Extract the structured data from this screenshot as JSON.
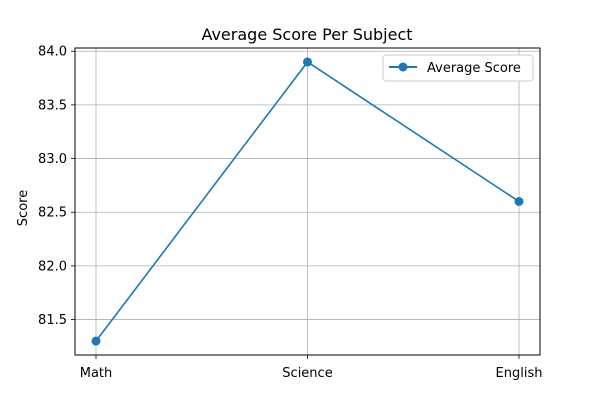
{
  "chart_data": {
    "type": "line",
    "title": "Average Score Per Subject",
    "xlabel": "",
    "ylabel": "Score",
    "categories": [
      "Math",
      "Science",
      "English"
    ],
    "series": [
      {
        "name": "Average Score",
        "values": [
          81.3,
          83.9,
          82.6
        ],
        "color": "#1f77b4",
        "marker": "circle"
      }
    ],
    "ylim": [
      81.17,
      84.03
    ],
    "yticks": [
      81.5,
      82.0,
      82.5,
      83.0,
      83.5,
      84.0
    ],
    "ytick_labels": [
      "81.5",
      "82.0",
      "82.5",
      "83.0",
      "83.5",
      "84.0"
    ],
    "grid": true,
    "legend_position": "top-right"
  }
}
